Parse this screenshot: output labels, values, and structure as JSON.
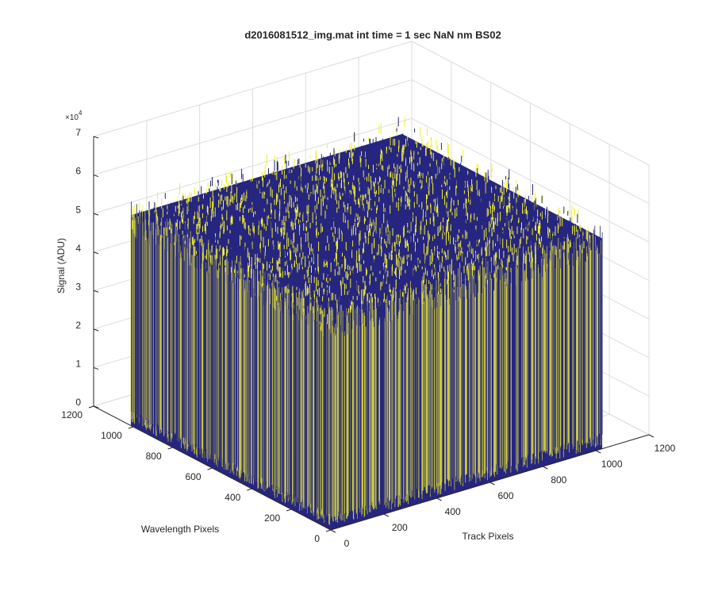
{
  "chart_data": {
    "type": "surface3d",
    "title": "d2016081512_img.mat int time = 1 sec  NaN nm BS02",
    "xlabel": "Track Pixels",
    "ylabel": "Wavelength Pixels",
    "zlabel": "Signal (ADU)",
    "zscale_label": {
      "base": "×10",
      "exponent": "4"
    },
    "xlim": [
      0,
      1200
    ],
    "xticks": [
      0,
      200,
      400,
      600,
      800,
      1000,
      1200
    ],
    "ylim": [
      0,
      1200
    ],
    "yticks": [
      0,
      200,
      400,
      600,
      800,
      1000,
      1200
    ],
    "zlim": [
      0,
      70000
    ],
    "zticks": [
      {
        "value": 0,
        "label": "0"
      },
      {
        "value": 10000,
        "label": "1"
      },
      {
        "value": 20000,
        "label": "2"
      },
      {
        "value": 30000,
        "label": "3"
      },
      {
        "value": 40000,
        "label": "4"
      },
      {
        "value": 50000,
        "label": "5"
      },
      {
        "value": 60000,
        "label": "6"
      },
      {
        "value": 70000,
        "label": "7"
      }
    ],
    "grid": true,
    "colors": [
      "#262680",
      "#f0f030"
    ]
  }
}
